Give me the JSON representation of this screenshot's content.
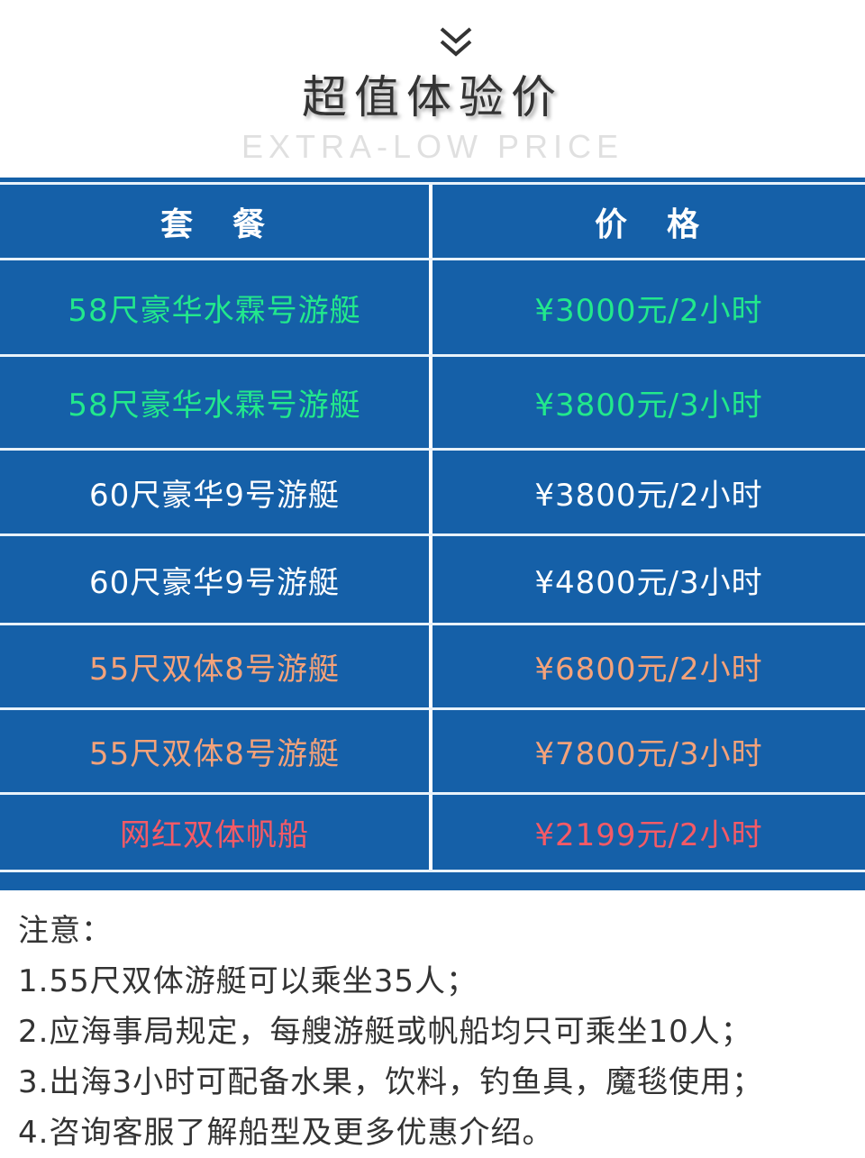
{
  "header": {
    "icon": "double-chevron-down-icon",
    "title": "超值体验价",
    "subtitle": "EXTRA-LOW PRICE"
  },
  "table": {
    "columns": [
      "套　餐",
      "价　格"
    ],
    "rows": [
      {
        "package": "58尺豪华水霖号游艇",
        "price": "¥3000元/2小时",
        "color": "#22e88c"
      },
      {
        "package": "58尺豪华水霖号游艇",
        "price": "¥3800元/3小时",
        "color": "#22e88c"
      },
      {
        "package": "60尺豪华9号游艇",
        "price": "¥3800元/2小时",
        "color": "#ffffff"
      },
      {
        "package": "60尺豪华9号游艇",
        "price": "¥4800元/3小时",
        "color": "#ffffff"
      },
      {
        "package": "55尺双体8号游艇",
        "price": "¥6800元/2小时",
        "color": "#f4a27a"
      },
      {
        "package": "55尺双体8号游艇",
        "price": "¥7800元/3小时",
        "color": "#f4a27a"
      },
      {
        "package": "网红双体帆船",
        "price": "¥2199元/2小时",
        "color": "#f55a66"
      }
    ],
    "background": "#1560a8"
  },
  "notes": {
    "heading": "注意：",
    "items": [
      "1.55尺双体游艇可以乘坐35人；",
      "2.应海事局规定，每艘游艇或帆船均只可乘坐10人；",
      "3.出海3小时可配备水果，饮料，钓鱼具，魔毯使用；",
      "4.咨询客服了解船型及更多优惠介绍。"
    ]
  }
}
